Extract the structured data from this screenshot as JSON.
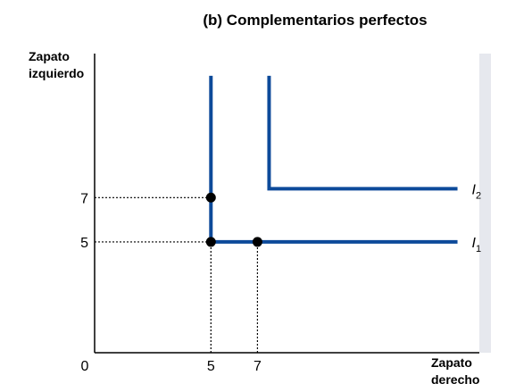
{
  "chart_data": {
    "type": "line",
    "title": "(b) Complementarios perfectos",
    "xlabel": [
      "Zapato",
      "derecho"
    ],
    "ylabel": [
      "Zapato",
      "izquierdo"
    ],
    "origin_label": "0",
    "xlim": [
      0,
      16.5
    ],
    "ylim": [
      0,
      13.5
    ],
    "x_ticks": [
      5,
      7
    ],
    "y_ticks": [
      7,
      5
    ],
    "series": [
      {
        "name": "I1",
        "label_main": "I",
        "label_sub": "1",
        "points": [
          [
            5,
            12.5
          ],
          [
            5,
            5
          ],
          [
            15.6,
            5
          ]
        ],
        "color": "#0d4a9a"
      },
      {
        "name": "I2",
        "label_main": "I",
        "label_sub": "2",
        "points": [
          [
            7.5,
            12.5
          ],
          [
            7.5,
            7.4
          ],
          [
            15.6,
            7.4
          ]
        ],
        "color": "#0d4a9a"
      }
    ],
    "points": [
      [
        5,
        7
      ],
      [
        5,
        5
      ],
      [
        7,
        5
      ]
    ],
    "guides": [
      {
        "from": [
          0,
          7
        ],
        "to": [
          5,
          7
        ]
      },
      {
        "from": [
          0,
          5
        ],
        "to": [
          5,
          5
        ]
      },
      {
        "from": [
          5,
          0
        ],
        "to": [
          5,
          5
        ]
      },
      {
        "from": [
          7,
          0
        ],
        "to": [
          7,
          5
        ]
      }
    ]
  }
}
